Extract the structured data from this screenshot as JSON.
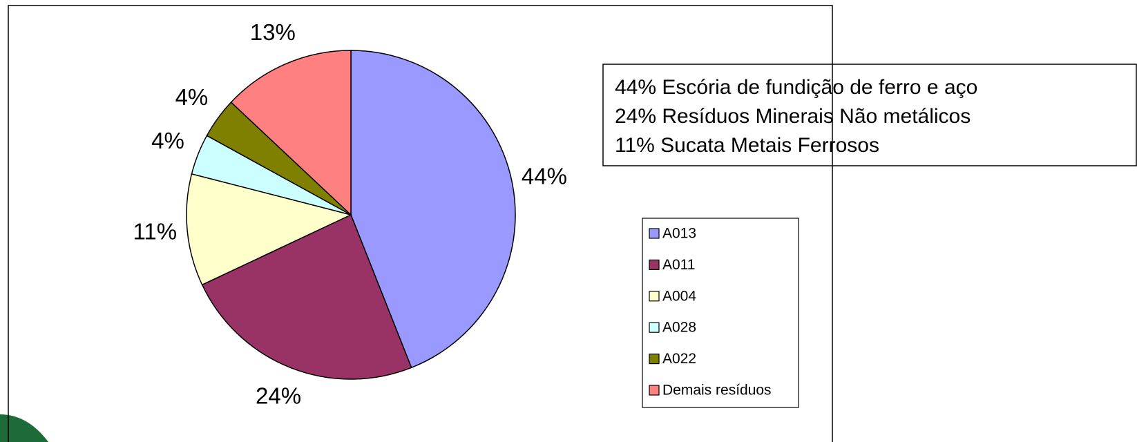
{
  "chart_data": {
    "type": "pie",
    "categories": [
      "A013",
      "A011",
      "A004",
      "A028",
      "A022",
      "Demais resíduos"
    ],
    "values": [
      44,
      24,
      11,
      4,
      4,
      13
    ],
    "value_labels": [
      "44%",
      "24%",
      "11%",
      "4%",
      "4%",
      "13%"
    ],
    "colors": [
      "#9999ff",
      "#993366",
      "#ffffcc",
      "#ccffff",
      "#808000",
      "#ff8080"
    ],
    "annotations": [
      "44% Escória de fundição de ferro e aço",
      "24% Resíduos Minerais Não metálicos",
      "11% Sucata Metais Ferrosos"
    ]
  }
}
